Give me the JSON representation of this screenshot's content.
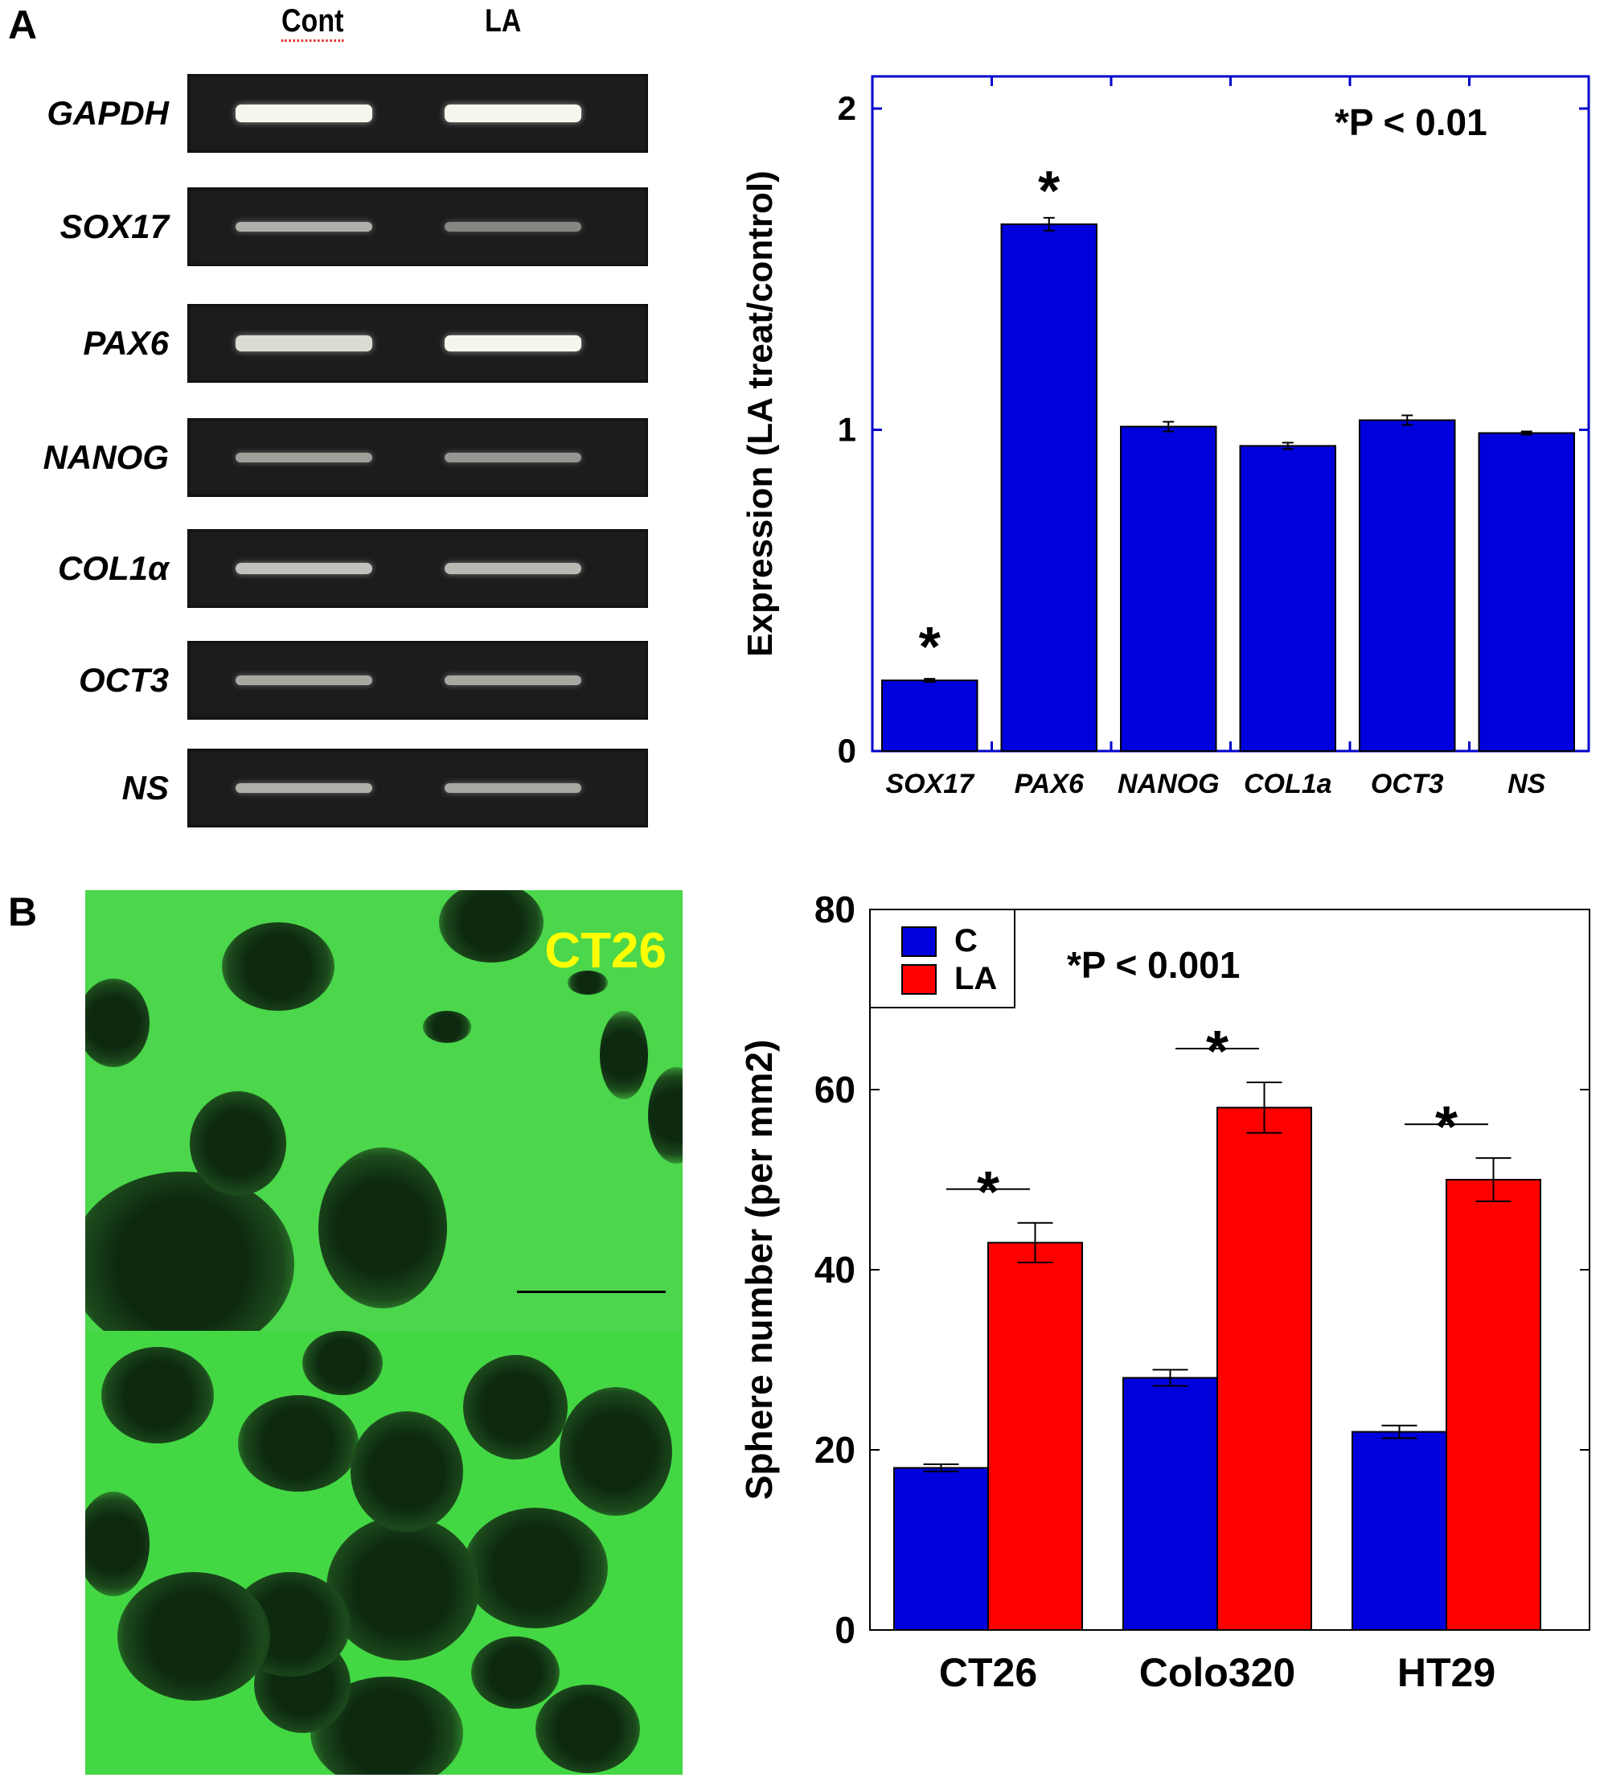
{
  "panel_a": {
    "letter": "A",
    "gel": {
      "lanes": [
        "Cont",
        "LA"
      ],
      "genes": [
        "GAPDH",
        "SOX17",
        "PAX6",
        "NANOG",
        "COL1α",
        "OCT3",
        "NS"
      ]
    }
  },
  "panel_b": {
    "letter": "B",
    "image_label": "CT26",
    "image_label_color": "#ffff00"
  },
  "chart_data": [
    {
      "type": "bar",
      "title": "",
      "annotation": "*P < 0.01",
      "xlabel": "",
      "ylabel": "Expression (LA treat/control)",
      "categories": [
        "SOX17",
        "PAX6",
        "NANOG",
        "COL1a",
        "OCT3",
        "NS"
      ],
      "values": [
        0.22,
        1.64,
        1.01,
        0.95,
        1.03,
        0.99
      ],
      "errors": [
        0.005,
        0.02,
        0.015,
        0.01,
        0.015,
        0.005
      ],
      "significant": [
        true,
        true,
        false,
        false,
        false,
        false
      ],
      "ylim": [
        0,
        2
      ],
      "yticks": [
        0,
        1,
        2
      ],
      "color": "#0000dd",
      "axis_color": "#0000cc",
      "grid": false
    },
    {
      "type": "bar",
      "title": "",
      "annotation": "*P < 0.001",
      "xlabel": "",
      "ylabel": "Sphere number (per mm2)",
      "categories": [
        "CT26",
        "Colo320",
        "HT29"
      ],
      "series": [
        {
          "name": "C",
          "color": "#0000dd",
          "values": [
            18,
            28,
            22
          ],
          "errors": [
            0.4,
            0.9,
            0.7
          ]
        },
        {
          "name": "LA",
          "color": "#ff0000",
          "values": [
            43,
            58,
            50
          ],
          "errors": [
            2.2,
            2.8,
            2.4
          ]
        }
      ],
      "significant": [
        true,
        true,
        true
      ],
      "ylim": [
        0,
        80
      ],
      "yticks": [
        0,
        20,
        40,
        60,
        80
      ],
      "legend_position": "upper-left",
      "grid": false
    }
  ]
}
